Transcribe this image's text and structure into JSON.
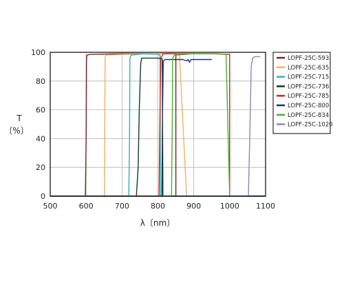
{
  "chart_data": {
    "type": "line",
    "title": "",
    "xlabel": "λ〔nm〕",
    "ylabel_lines": [
      "T",
      "〔%〕"
    ],
    "xlim": [
      500,
      1100
    ],
    "ylim": [
      0,
      100
    ],
    "x_ticks": [
      500,
      600,
      700,
      800,
      900,
      1000,
      1100
    ],
    "y_ticks": [
      0,
      20,
      40,
      60,
      80,
      100
    ],
    "grid": true,
    "legend_position": "right",
    "series": [
      {
        "name": "LOPF-25C-593",
        "color": "#7a1f1f",
        "points": [
          [
            500,
            0
          ],
          [
            598,
            0
          ],
          [
            600,
            40
          ],
          [
            601,
            94
          ],
          [
            602,
            98
          ],
          [
            610,
            98.5
          ],
          [
            700,
            99
          ],
          [
            800,
            99
          ],
          [
            850,
            99
          ],
          [
            850,
            0
          ]
        ]
      },
      {
        "name": "LOPF-25C-635",
        "color": "#f0b060",
        "points": [
          [
            500,
            0
          ],
          [
            651,
            0
          ],
          [
            652,
            50
          ],
          [
            653,
            96
          ],
          [
            655,
            98
          ],
          [
            700,
            98.5
          ],
          [
            800,
            99
          ],
          [
            860,
            99
          ],
          [
            880,
            0
          ]
        ]
      },
      {
        "name": "LOPF-25C-715",
        "color": "#30b0b0",
        "points": [
          [
            500,
            0
          ],
          [
            719,
            0
          ],
          [
            721,
            40
          ],
          [
            722,
            96
          ],
          [
            725,
            98
          ],
          [
            760,
            99
          ],
          [
            800,
            98.5
          ],
          [
            806,
            98
          ],
          [
            807,
            0
          ],
          [
            1100,
            0
          ]
        ]
      },
      {
        "name": "LOPF-25C-736",
        "color": "#0e3a28",
        "points": [
          [
            500,
            0
          ],
          [
            740,
            0
          ],
          [
            745,
            20
          ],
          [
            748,
            60
          ],
          [
            752,
            92
          ],
          [
            755,
            96
          ],
          [
            800,
            96
          ],
          [
            812,
            95.5
          ],
          [
            814,
            0
          ],
          [
            1100,
            0
          ]
        ]
      },
      {
        "name": "LOPF-25C-785",
        "color": "#d42020",
        "points": [
          [
            500,
            0
          ],
          [
            803,
            0
          ],
          [
            806,
            60
          ],
          [
            808,
            96
          ],
          [
            815,
            99
          ],
          [
            900,
            99
          ],
          [
            960,
            99
          ],
          [
            1000,
            98.5
          ],
          [
            1000,
            0
          ]
        ]
      },
      {
        "name": "LOPF-25C-800",
        "color": "#1a2f6e",
        "points": [
          [
            500,
            0
          ],
          [
            811,
            0
          ],
          [
            813,
            60
          ],
          [
            815,
            94
          ],
          [
            820,
            95
          ],
          [
            870,
            95
          ],
          [
            880,
            94
          ],
          [
            884,
            95
          ],
          [
            888,
            93
          ],
          [
            892,
            95
          ],
          [
            900,
            95
          ],
          [
            950,
            95
          ]
        ]
      },
      {
        "name": "LOPF-25C-834",
        "color": "#4faa2a",
        "points": [
          [
            500,
            0
          ],
          [
            838,
            0
          ],
          [
            840,
            50
          ],
          [
            841,
            96
          ],
          [
            845,
            98
          ],
          [
            900,
            99
          ],
          [
            950,
            99
          ],
          [
            990,
            98.5
          ],
          [
            1000,
            0
          ]
        ]
      },
      {
        "name": "LOPF-25C-1020",
        "color": "#9080c8",
        "points": [
          [
            500,
            0
          ],
          [
            1052,
            0
          ],
          [
            1056,
            40
          ],
          [
            1060,
            90
          ],
          [
            1064,
            96
          ],
          [
            1070,
            97
          ],
          [
            1085,
            97
          ]
        ]
      }
    ]
  }
}
